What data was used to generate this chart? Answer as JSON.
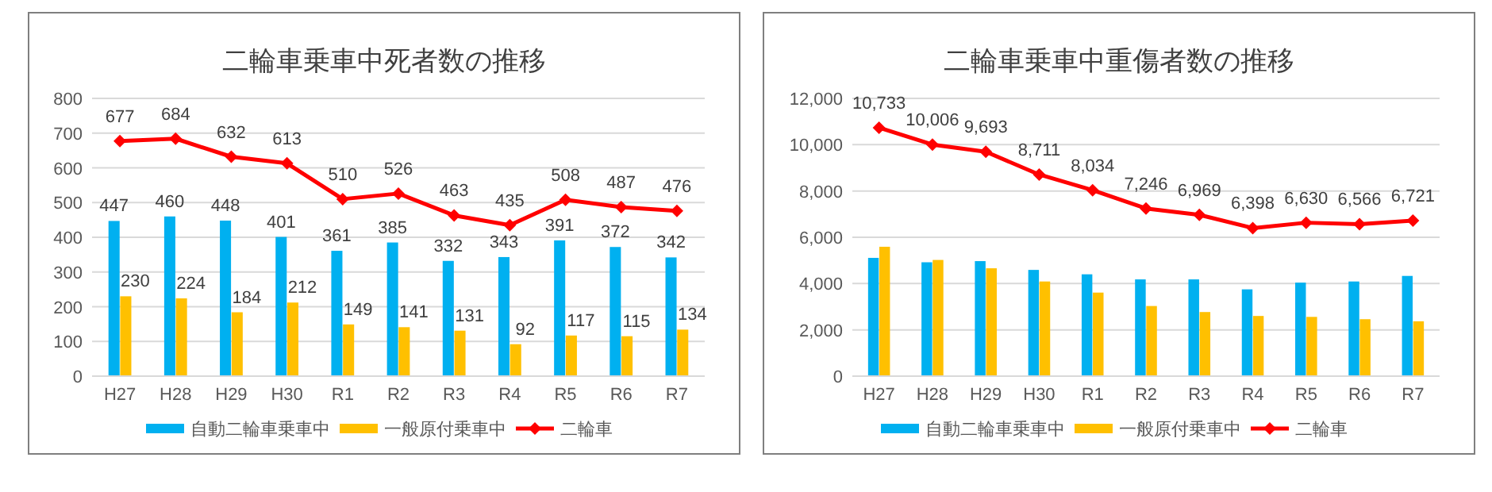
{
  "chart_data": [
    {
      "type": "bar",
      "title": "二輪車乗車中死者数の推移",
      "categories": [
        "H27",
        "H28",
        "H29",
        "H30",
        "R1",
        "R2",
        "R3",
        "R4",
        "R5",
        "R6",
        "R7"
      ],
      "series": [
        {
          "name": "自動二輪車乗車中",
          "color": "#00b0f0",
          "values": [
            447,
            460,
            448,
            401,
            361,
            385,
            332,
            343,
            391,
            372,
            342
          ]
        },
        {
          "name": "一般原付乗車中",
          "color": "#ffc000",
          "values": [
            230,
            224,
            184,
            212,
            149,
            141,
            131,
            92,
            117,
            115,
            134
          ]
        },
        {
          "name": "二輪車",
          "type": "line",
          "color": "#ff0000",
          "values": [
            677,
            684,
            632,
            613,
            510,
            526,
            463,
            435,
            508,
            487,
            476
          ]
        }
      ],
      "ylim": [
        0,
        800
      ],
      "yticks": [
        0,
        100,
        200,
        300,
        400,
        500,
        600,
        700,
        800
      ],
      "grid": "y",
      "legend": "bottom",
      "marker": "diamond",
      "data_labels": true
    },
    {
      "type": "bar",
      "title": "二輪車乗車中重傷者数の推移",
      "categories": [
        "H27",
        "H28",
        "H29",
        "H30",
        "R1",
        "R2",
        "R3",
        "R4",
        "R5",
        "R6",
        "R7"
      ],
      "series": [
        {
          "name": "自動二輪車乗車中",
          "color": "#00b0f0",
          "values": [
            5110,
            4920,
            4970,
            4590,
            4400,
            4180,
            4180,
            3750,
            4040,
            4090,
            4330
          ]
        },
        {
          "name": "一般原付乗車中",
          "color": "#ffc000",
          "values": [
            5590,
            5020,
            4660,
            4090,
            3610,
            3030,
            2770,
            2600,
            2560,
            2460,
            2370
          ]
        },
        {
          "name": "二輪車",
          "type": "line",
          "color": "#ff0000",
          "values": [
            10733,
            10006,
            9693,
            8711,
            8034,
            7246,
            6969,
            6398,
            6630,
            6566,
            6721
          ],
          "value_labels": [
            "10,733",
            "10,006",
            "9,693",
            "8,711",
            "8,034",
            "7,246",
            "6,969",
            "6,398",
            "6,630",
            "6,566",
            "6,721"
          ]
        }
      ],
      "ylim": [
        0,
        12000
      ],
      "yticks": [
        0,
        {
          "value": 2000,
          "label": "2,000"
        },
        {
          "value": 4000,
          "label": "4,000"
        },
        {
          "value": 6000,
          "label": "6,000"
        },
        {
          "value": 8000,
          "label": "8,000"
        },
        {
          "value": 10000,
          "label": "10,000"
        },
        {
          "value": 12000,
          "label": "12,000"
        }
      ],
      "grid": "y",
      "legend": "bottom",
      "marker": "diamond"
    }
  ]
}
